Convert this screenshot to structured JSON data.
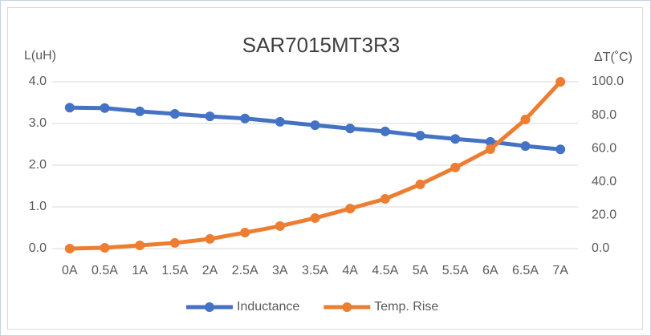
{
  "chart_data": {
    "type": "line",
    "title": "SAR7015MT3R3",
    "y_label": "L(uH)",
    "y2_label": "ΔT(˚C)",
    "categories": [
      "0A",
      "0.5A",
      "1A",
      "1.5A",
      "2A",
      "2.5A",
      "3A",
      "3.5A",
      "4A",
      "4.5A",
      "5A",
      "5.5A",
      "6A",
      "6.5A",
      "7A"
    ],
    "series": [
      {
        "name": "Inductance",
        "color": "#4472c4",
        "axis": "y",
        "values": [
          3.38,
          3.37,
          3.29,
          3.23,
          3.17,
          3.12,
          3.04,
          2.96,
          2.88,
          2.81,
          2.71,
          2.63,
          2.56,
          2.46,
          2.38
        ]
      },
      {
        "name": "Temp. Rise",
        "color": "#ed7d31",
        "axis": "y2",
        "values": [
          0,
          0.5,
          1.9,
          3.4,
          5.8,
          9.6,
          13.5,
          18.3,
          24,
          29.8,
          38.5,
          48.6,
          59.6,
          77.4,
          100
        ]
      }
    ],
    "ylim": [
      0,
      4
    ],
    "yticks": [
      {
        "value": 0,
        "label": "0.0"
      },
      {
        "value": 1,
        "label": "1.0"
      },
      {
        "value": 2,
        "label": "2.0"
      },
      {
        "value": 3,
        "label": "3.0"
      },
      {
        "value": 4,
        "label": "4.0"
      }
    ],
    "y2lim": [
      0,
      100
    ],
    "y2ticks": [
      {
        "value": 0,
        "label": "0.0"
      },
      {
        "value": 20,
        "label": "20.0"
      },
      {
        "value": 40,
        "label": "40.0"
      },
      {
        "value": 60,
        "label": "60.0"
      },
      {
        "value": 80,
        "label": "80.0"
      },
      {
        "value": 100,
        "label": "100.0"
      }
    ],
    "grid": true,
    "legend": "bottom"
  }
}
